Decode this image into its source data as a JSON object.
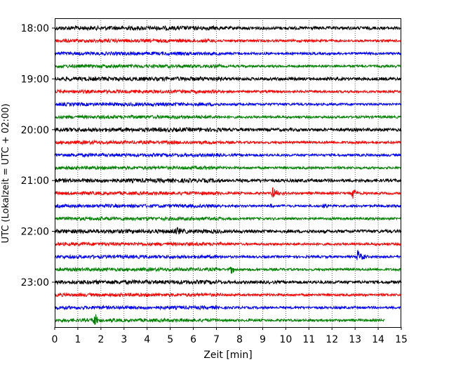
{
  "chart_data": {
    "type": "line",
    "xlabel": "Zeit  [min]",
    "ylabel": "UTC (Lokalzeit = UTC + 02:00)",
    "xlim": [
      0,
      15
    ],
    "x_ticks": [
      0,
      1,
      2,
      3,
      4,
      5,
      6,
      7,
      8,
      9,
      10,
      11,
      12,
      13,
      14,
      15
    ],
    "y_tick_labels": [
      "18:00",
      "19:00",
      "20:00",
      "21:00",
      "22:00",
      "23:00"
    ],
    "trace_interval_min": 15,
    "trace_count": 24,
    "trace_colors": [
      "#000000",
      "#ff0000",
      "#0000ff",
      "#008000"
    ],
    "vertical_grid": "dotted",
    "last_trace_end_min": 14.3,
    "events": [
      {
        "trace_start": "21:15",
        "x_min": 9.45,
        "color": "#ff0000",
        "strength": "strong"
      },
      {
        "trace_start": "21:15",
        "x_min": 12.9,
        "color": "#ff0000",
        "strength": "medium"
      },
      {
        "trace_start": "21:30",
        "x_min": 9.35,
        "color": "#0000ff",
        "strength": "small"
      },
      {
        "trace_start": "21:30",
        "x_min": 11.6,
        "color": "#0000ff",
        "strength": "small"
      },
      {
        "trace_start": "22:00",
        "x_min": 5.3,
        "color": "#000000",
        "strength": "small"
      },
      {
        "trace_start": "22:30",
        "x_min": 13.1,
        "color": "#0000ff",
        "strength": "strong"
      },
      {
        "trace_start": "22:45",
        "x_min": 7.6,
        "color": "#008000",
        "strength": "medium"
      },
      {
        "trace_start": "23:45",
        "x_min": 1.7,
        "color": "#008000",
        "strength": "strong"
      }
    ]
  }
}
